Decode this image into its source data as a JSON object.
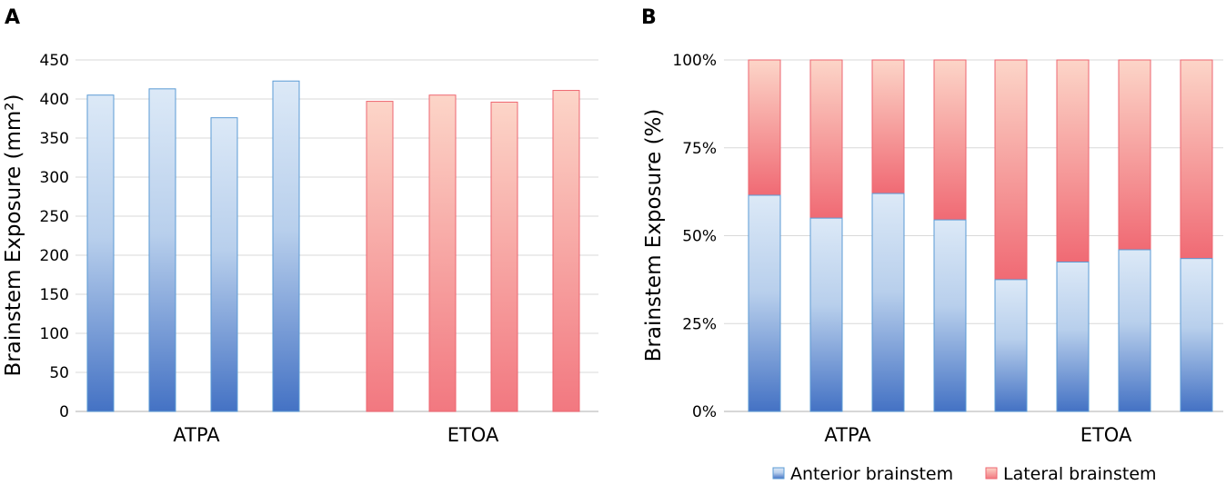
{
  "chart_data": [
    {
      "panel_label": "A",
      "type": "bar",
      "ylabel": "Brainstem Exposure (mm²)",
      "ylim": [
        0,
        450
      ],
      "yticks": [
        0,
        50,
        100,
        150,
        200,
        250,
        300,
        350,
        400,
        450
      ],
      "grid": true,
      "groups": [
        {
          "name": "ATPA",
          "values": [
            405,
            413,
            376,
            423
          ],
          "color": "blue"
        },
        {
          "name": "ETOA",
          "values": [
            397,
            405,
            396,
            411
          ],
          "color": "red"
        }
      ]
    },
    {
      "panel_label": "B",
      "type": "bar",
      "stacked": true,
      "ylabel": "Brainstem Exposure (%)",
      "ylim": [
        0,
        100
      ],
      "yticks": [
        "0%",
        "25%",
        "50%",
        "75%",
        "100%"
      ],
      "grid": true,
      "groups": [
        {
          "name": "ATPA",
          "anterior": [
            61.5,
            55,
            62,
            54.5
          ]
        },
        {
          "name": "ETOA",
          "anterior": [
            37.5,
            42.5,
            46,
            43.5
          ]
        }
      ],
      "legend": [
        {
          "label": "Anterior brainstem",
          "color": "blue"
        },
        {
          "label": "Lateral brainstem",
          "color": "red"
        }
      ],
      "legend_position": "bottom"
    }
  ],
  "colors": {
    "blue_top": "#dce9f7",
    "blue_bottom": "#4472c4",
    "blue_border": "#5b9bd5",
    "red_top": "#fcd5c8",
    "red_bottom": "#f27880",
    "red_border": "#ee6670",
    "grid": "#d9d9d9",
    "axis": "#bfbfbf",
    "text": "#000000"
  }
}
